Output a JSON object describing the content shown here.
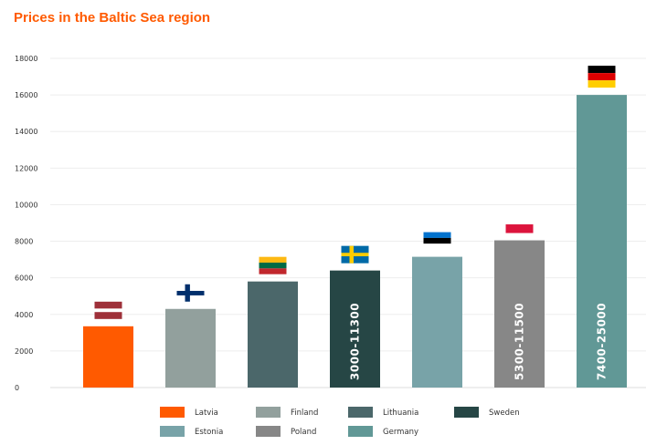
{
  "chart_data": {
    "type": "bar",
    "title": "Prices in the Baltic Sea region",
    "xlabel": "",
    "ylabel": "",
    "ylim": [
      0,
      18000
    ],
    "yticks": [
      0,
      2000,
      4000,
      6000,
      8000,
      10000,
      12000,
      14000,
      16000,
      18000
    ],
    "grid": true,
    "legend_placement": "bottom",
    "categories": [
      "Latvia",
      "Finland",
      "Lithuania",
      "Sweden",
      "Estonia",
      "Poland",
      "Germany"
    ],
    "values": [
      3350,
      4300,
      5800,
      6400,
      7150,
      8050,
      16000
    ],
    "range_labels": [
      "",
      "",
      "",
      "3000-11300",
      "",
      "5300-11500",
      "7400-25000"
    ],
    "colors": [
      "#ff5a00",
      "#92a09d",
      "#4b676a",
      "#264645",
      "#78a3a8",
      "#878787",
      "#619896"
    ],
    "flags": [
      "latvia-flag",
      "finland-flag",
      "lithuania-flag",
      "sweden-flag",
      "estonia-flag",
      "poland-flag",
      "germany-flag"
    ]
  }
}
